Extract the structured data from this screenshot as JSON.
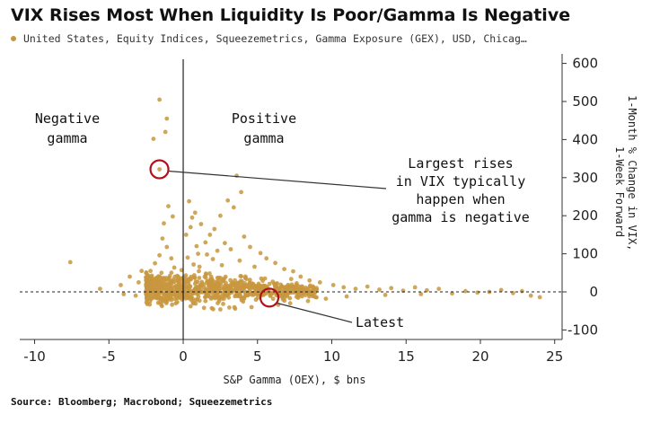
{
  "chart_data": {
    "type": "scatter",
    "title": "VIX Rises Most When Liquidity Is Poor/Gamma Is Negative",
    "legend": "United States, Equity Indices, Squeezemetrics, Gamma Exposure (GEX), USD, Chicag…",
    "xlabel": "S&P Gamma (OEX), $ bns",
    "ylabel_lines": [
      "1-Month % Change in VIX,",
      "1-Week Forward"
    ],
    "source": "Source: Bloomberg; Macrobond; Squeezemetrics",
    "xlim": [
      -11,
      25.5
    ],
    "ylim": [
      -125,
      625
    ],
    "x_ticks": [
      -10,
      -5,
      0,
      5,
      10,
      15,
      20,
      25
    ],
    "y_ticks": [
      -100,
      0,
      100,
      200,
      300,
      400,
      500,
      600
    ],
    "grid": false,
    "legend_position": "top-left",
    "point_color": "#c8963e",
    "highlight_color": "#b0121b",
    "region_labels": {
      "negative": [
        "Negative",
        "gamma"
      ],
      "positive": [
        "Positive",
        "gamma"
      ]
    },
    "annotations": {
      "largest": [
        "Largest rises",
        "in VIX typically",
        "happen when",
        "gamma is negative"
      ],
      "latest": "Latest"
    },
    "highlights": [
      {
        "name": "largest-rise",
        "x": -1.6,
        "y": 322
      },
      {
        "name": "latest",
        "x": 5.8,
        "y": -15
      }
    ],
    "points": [
      [
        -7.6,
        78
      ],
      [
        -5.6,
        8
      ],
      [
        -4.2,
        18
      ],
      [
        -3.6,
        40
      ],
      [
        -2.8,
        55
      ],
      [
        -2.5,
        38
      ],
      [
        -2.2,
        28
      ],
      [
        -1.9,
        75
      ],
      [
        -1.6,
        96
      ],
      [
        -1.4,
        140
      ],
      [
        -1.1,
        118
      ],
      [
        -0.8,
        88
      ],
      [
        -0.6,
        64
      ],
      [
        -0.4,
        42
      ],
      [
        -1.6,
        505
      ],
      [
        -1.1,
        455
      ],
      [
        -1.2,
        420
      ],
      [
        -2.0,
        402
      ],
      [
        -1.6,
        322
      ],
      [
        -1.0,
        225
      ],
      [
        -0.7,
        198
      ],
      [
        -1.3,
        180
      ],
      [
        -2.2,
        55
      ],
      [
        -3.0,
        25
      ],
      [
        -1.8,
        30
      ],
      [
        -0.9,
        15
      ],
      [
        0.4,
        238
      ],
      [
        0.8,
        208
      ],
      [
        0.6,
        195
      ],
      [
        1.2,
        178
      ],
      [
        1.8,
        150
      ],
      [
        2.1,
        165
      ],
      [
        2.5,
        200
      ],
      [
        3.0,
        240
      ],
      [
        3.4,
        222
      ],
      [
        1.5,
        130
      ],
      [
        0.9,
        120
      ],
      [
        2.8,
        128
      ],
      [
        3.6,
        305
      ],
      [
        3.9,
        262
      ],
      [
        4.1,
        145
      ],
      [
        4.5,
        118
      ],
      [
        3.2,
        112
      ],
      [
        5.2,
        102
      ],
      [
        5.6,
        88
      ],
      [
        6.2,
        76
      ],
      [
        6.8,
        60
      ],
      [
        7.4,
        54
      ],
      [
        7.9,
        40
      ],
      [
        8.5,
        30
      ],
      [
        9.2,
        25
      ],
      [
        10.1,
        18
      ],
      [
        10.8,
        12
      ],
      [
        11.6,
        8
      ],
      [
        12.4,
        14
      ],
      [
        13.2,
        6
      ],
      [
        14.0,
        10
      ],
      [
        14.8,
        3
      ],
      [
        15.6,
        12
      ],
      [
        16.4,
        4
      ],
      [
        17.2,
        8
      ],
      [
        18.1,
        -4
      ],
      [
        19.0,
        2
      ],
      [
        19.8,
        -2
      ],
      [
        20.6,
        0
      ],
      [
        21.4,
        5
      ],
      [
        22.2,
        -3
      ],
      [
        22.8,
        2
      ],
      [
        23.4,
        -10
      ],
      [
        24.0,
        -14
      ],
      [
        16.0,
        -6
      ],
      [
        13.6,
        -8
      ],
      [
        11.0,
        -12
      ],
      [
        9.6,
        -18
      ],
      [
        8.4,
        -24
      ],
      [
        7.2,
        -30
      ],
      [
        6.4,
        -34
      ],
      [
        4.6,
        -40
      ],
      [
        3.5,
        -44
      ],
      [
        2.5,
        -46
      ],
      [
        1.4,
        -42
      ],
      [
        0.5,
        -38
      ],
      [
        -0.5,
        -30
      ],
      [
        -1.2,
        -24
      ],
      [
        -2.4,
        -18
      ],
      [
        -3.2,
        -10
      ],
      [
        -4.0,
        -6
      ],
      [
        0.3,
        90
      ],
      [
        0.7,
        72
      ],
      [
        1.1,
        66
      ],
      [
        2.0,
        86
      ],
      [
        2.6,
        70
      ],
      [
        3.8,
        82
      ],
      [
        4.8,
        66
      ],
      [
        1.6,
        98
      ],
      [
        2.3,
        108
      ],
      [
        0.2,
        150
      ],
      [
        0.5,
        170
      ],
      [
        1.0,
        100
      ]
    ]
  }
}
